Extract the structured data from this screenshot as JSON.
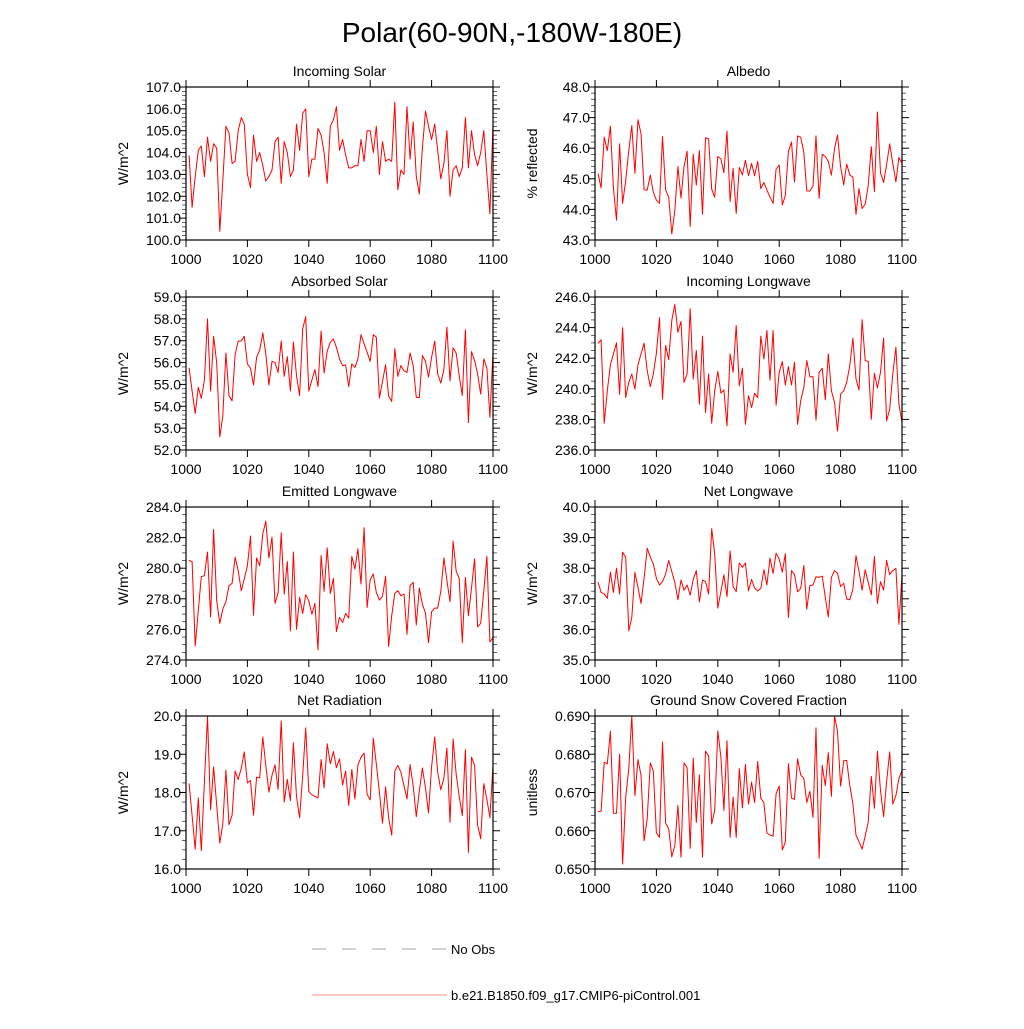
{
  "title": "Polar(60-90N,-180W-180E)",
  "series_color": "#ff0000",
  "obs_color": "#888888",
  "legend": {
    "obs_label": "No Obs",
    "model_label": "b.e21.B1850.f09_g17.CMIP6-piControl.001"
  },
  "chart_data": [
    {
      "type": "line",
      "title": "Incoming Solar",
      "xlabel": "",
      "ylabel": "W/m^2",
      "xlim": [
        1000,
        1100
      ],
      "ylim": [
        100,
        107
      ],
      "grid": false,
      "xticks": [
        "1000",
        "1020",
        "1040",
        "1060",
        "1080",
        "1100"
      ],
      "yticks": [
        "100.0",
        "101.0",
        "102.0",
        "103.0",
        "104.0",
        "105.0",
        "106.0",
        "107.0"
      ],
      "x_start": 1001,
      "values": [
        103.86,
        101.5,
        102.9,
        104.1,
        104.3,
        102.9,
        104.7,
        103.6,
        104.4,
        104.2,
        100.4,
        102.7,
        105.2,
        104.9,
        103.5,
        103.6,
        105.0,
        105.6,
        105.3,
        103.0,
        102.4,
        104.8,
        103.6,
        104.0,
        103.4,
        102.7,
        102.9,
        103.2,
        104.5,
        104.7,
        102.6,
        104.5,
        104.0,
        102.9,
        103.2,
        105.3,
        104.1,
        105.8,
        106.0,
        102.9,
        103.7,
        103.7,
        105.1,
        104.8,
        104.0,
        102.6,
        105.2,
        105.5,
        106.1,
        104.1,
        104.6,
        103.9,
        103.3,
        103.3,
        103.4,
        103.4,
        104.6,
        103.6,
        105.0,
        105.0,
        104.0,
        105.2,
        103.0,
        104.5,
        103.6,
        103.7,
        103.6,
        106.3,
        102.3,
        103.2,
        103.0,
        106.1,
        103.7,
        105.4,
        102.9,
        102.1,
        104.2,
        105.9,
        105.2,
        104.6,
        105.3,
        104.1,
        102.8,
        103.5,
        105.0,
        102.0,
        103.2,
        103.4,
        102.9,
        103.3,
        105.6,
        103.3,
        105.0,
        103.9,
        103.4,
        104.0,
        105.0,
        103.0,
        101.2,
        105.3
      ]
    },
    {
      "type": "line",
      "title": "Albedo",
      "xlabel": "",
      "ylabel": "% reflected",
      "xlim": [
        1000,
        1100
      ],
      "ylim": [
        43,
        48
      ],
      "grid": false,
      "xticks": [
        "1000",
        "1020",
        "1040",
        "1060",
        "1080",
        "1100"
      ],
      "yticks": [
        "43.0",
        "44.0",
        "45.0",
        "46.0",
        "47.0",
        "48.0"
      ],
      "x_start": 1001,
      "values": [
        45.16,
        44.7,
        46.36,
        45.92,
        46.72,
        44.7,
        43.65,
        46.14,
        44.2,
        44.94,
        45.92,
        46.74,
        45.18,
        46.93,
        46.47,
        44.64,
        44.63,
        45.12,
        44.56,
        44.3,
        44.2,
        46.38,
        44.64,
        44.4,
        43.2,
        43.95,
        45.4,
        44.37,
        45.4,
        45.9,
        43.44,
        45.8,
        44.8,
        45.92,
        43.84,
        46.34,
        46.3,
        44.66,
        44.4,
        45.73,
        45.65,
        45.2,
        46.56,
        44.26,
        45.34,
        43.87,
        45.37,
        45.13,
        45.6,
        45.1,
        45.5,
        45.1,
        45.57,
        44.68,
        44.88,
        44.63,
        44.4,
        44.2,
        45.32,
        45.45,
        44.15,
        44.45,
        45.9,
        46.2,
        44.9,
        46.4,
        46.36,
        45.87,
        44.6,
        44.6,
        44.77,
        46.4,
        44.36,
        45.8,
        45.73,
        45.57,
        45.12,
        45.98,
        46.43,
        45.4,
        44.8,
        45.48,
        45.13,
        45.05,
        43.84,
        44.68,
        44.03,
        44.17,
        44.77,
        46.05,
        44.58,
        47.18,
        45.2,
        44.88,
        45.46,
        46.14,
        45.5,
        44.9,
        45.7,
        45.5
      ]
    },
    {
      "type": "line",
      "title": "Absorbed Solar",
      "xlabel": "",
      "ylabel": "W/m^2",
      "xlim": [
        1000,
        1100
      ],
      "ylim": [
        52,
        59
      ],
      "grid": false,
      "xticks": [
        "1000",
        "1020",
        "1040",
        "1060",
        "1080",
        "1100"
      ],
      "yticks": [
        "52.0",
        "53.0",
        "54.0",
        "55.0",
        "56.0",
        "57.0",
        "58.0",
        "59.0"
      ],
      "x_start": 1001,
      "values": [
        55.75,
        54.7,
        53.67,
        54.87,
        54.36,
        55.2,
        58.0,
        54.7,
        57.2,
        56.0,
        52.6,
        53.56,
        56.44,
        54.48,
        54.25,
        56.37,
        56.98,
        57.0,
        57.2,
        55.94,
        55.75,
        54.97,
        56.24,
        56.58,
        57.35,
        56.4,
        54.97,
        56.06,
        56.0,
        55.55,
        56.98,
        55.37,
        56.27,
        54.7,
        56.93,
        55.4,
        54.5,
        57.55,
        58.1,
        54.7,
        55.2,
        55.68,
        54.9,
        57.44,
        55.52,
        56.52,
        56.93,
        57.08,
        56.7,
        56.17,
        55.86,
        55.9,
        54.9,
        55.94,
        55.78,
        56.17,
        57.28,
        56.86,
        56.47,
        56.06,
        57.28,
        57.16,
        54.38,
        55.14,
        55.9,
        54.48,
        54.22,
        56.63,
        55.37,
        55.86,
        55.63,
        55.55,
        56.44,
        55.86,
        54.4,
        54.4,
        56.32,
        56.06,
        55.33,
        56.24,
        56.98,
        55.48,
        55.06,
        55.68,
        57.62,
        55.17,
        56.67,
        56.43,
        55.4,
        54.5,
        57.5,
        53.26,
        56.5,
        56.09,
        55.48,
        54.56,
        56.17,
        55.75,
        53.49,
        56.47
      ]
    },
    {
      "type": "line",
      "title": "Incoming Longwave",
      "xlabel": "",
      "ylabel": "W/m^2",
      "xlim": [
        1000,
        1100
      ],
      "ylim": [
        236,
        246
      ],
      "grid": false,
      "xticks": [
        "1000",
        "1020",
        "1040",
        "1060",
        "1080",
        "1100"
      ],
      "yticks": [
        "236.0",
        "238.0",
        "240.0",
        "242.0",
        "244.0",
        "246.0"
      ],
      "x_start": 1001,
      "values": [
        242.98,
        243.2,
        237.75,
        239.87,
        241.58,
        242.28,
        243.0,
        239.65,
        243.99,
        239.43,
        240.42,
        240.97,
        239.98,
        241.58,
        242.28,
        242.98,
        241.19,
        240.14,
        240.97,
        242.33,
        244.64,
        239.33,
        242.83,
        241.91,
        244.47,
        245.52,
        243.7,
        244.4,
        240.42,
        240.97,
        245.23,
        240.64,
        242.5,
        239.0,
        243.44,
        238.45,
        240.97,
        237.75,
        239.87,
        241.14,
        239.72,
        239.92,
        237.58,
        242.28,
        241.08,
        244.14,
        240.2,
        241.34,
        237.68,
        239.55,
        238.78,
        239.7,
        239.43,
        243.44,
        241.95,
        243.81,
        240.57,
        243.81,
        238.93,
        241.08,
        241.78,
        240.25,
        241.45,
        240.25,
        241.73,
        237.68,
        239.22,
        240.09,
        241.84,
        240.79,
        240.79,
        237.95,
        241.08,
        241.34,
        239.28,
        242.28,
        239.87,
        239.11,
        237.25,
        239.65,
        239.87,
        240.42,
        241.51,
        243.31,
        240.64,
        239.92,
        244.51,
        241.84,
        241.8,
        238.01,
        241.01,
        240.05,
        241.08,
        243.31,
        237.9,
        238.67,
        240.97,
        242.72,
        239.0,
        237.79
      ]
    },
    {
      "type": "line",
      "title": "Emitted Longwave",
      "xlabel": "",
      "ylabel": "W/m^2",
      "xlim": [
        1000,
        1100
      ],
      "ylim": [
        274,
        284
      ],
      "grid": false,
      "xticks": [
        "1000",
        "1020",
        "1040",
        "1060",
        "1080",
        "1100"
      ],
      "yticks": [
        "274.0",
        "276.0",
        "278.0",
        "280.0",
        "282.0",
        "284.0"
      ],
      "x_start": 1001,
      "values": [
        280.5,
        280.43,
        274.92,
        277.22,
        279.45,
        279.51,
        281.05,
        276.82,
        282.53,
        277.87,
        276.39,
        277.33,
        277.81,
        278.86,
        279.01,
        280.72,
        279.84,
        278.53,
        279.3,
        280.17,
        282.1,
        276.93,
        280.67,
        280.17,
        282.25,
        283.08,
        280.67,
        282.03,
        277.7,
        278.38,
        282.31,
        278.31,
        280.43,
        275.9,
        281.05,
        276.01,
        278.09,
        277.04,
        278.27,
        277.87,
        276.99,
        277.7,
        274.66,
        280.83,
        278.49,
        281.33,
        278.35,
        279.34,
        275.86,
        276.78,
        276.45,
        277.04,
        276.74,
        280.77,
        279.95,
        281.27,
        278.97,
        282.64,
        277.44,
        279.25,
        279.62,
        278.42,
        277.92,
        278.16,
        279.47,
        274.88,
        276.89,
        278.35,
        278.53,
        278.2,
        278.31,
        275.68,
        278.86,
        279.08,
        276.3,
        278.7,
        277.65,
        277.06,
        275.14,
        277.15,
        277.39,
        277.39,
        278.49,
        280.67,
        279.19,
        277.81,
        281.77,
        279.8,
        279.34,
        275.14,
        279.4,
        276.89,
        278.7,
        280.61,
        276.17,
        276.39,
        278.53,
        280.77,
        275.18,
        275.47
      ]
    },
    {
      "type": "line",
      "title": "Net Longwave",
      "xlabel": "",
      "ylabel": "W/m^2",
      "xlim": [
        1000,
        1100
      ],
      "ylim": [
        35,
        40
      ],
      "grid": false,
      "xticks": [
        "1000",
        "1020",
        "1040",
        "1060",
        "1080",
        "1100"
      ],
      "yticks": [
        "35.0",
        "36.0",
        "37.0",
        "38.0",
        "39.0",
        "40.0"
      ],
      "x_start": 1001,
      "values": [
        37.54,
        37.21,
        37.16,
        37.02,
        37.87,
        37.21,
        38.0,
        37.16,
        38.52,
        38.36,
        35.95,
        36.39,
        37.87,
        37.37,
        36.85,
        37.68,
        38.65,
        38.36,
        38.14,
        37.67,
        37.45,
        37.56,
        37.81,
        38.25,
        37.89,
        37.54,
        36.97,
        37.61,
        37.28,
        37.45,
        37.12,
        37.63,
        37.92,
        36.9,
        37.61,
        37.57,
        37.16,
        39.29,
        38.47,
        36.7,
        37.24,
        37.78,
        37.07,
        38.56,
        37.4,
        37.24,
        38.17,
        38.03,
        38.17,
        37.26,
        37.63,
        37.35,
        37.26,
        37.34,
        37.95,
        37.45,
        38.33,
        37.83,
        38.49,
        38.3,
        37.87,
        38.47,
        36.39,
        37.92,
        37.79,
        37.23,
        37.34,
        38.09,
        36.66,
        37.43,
        37.45,
        37.72,
        37.7,
        37.74,
        37.05,
        36.41,
        37.7,
        37.92,
        37.84,
        37.4,
        37.51,
        36.99,
        36.97,
        37.32,
        38.41,
        37.9,
        37.28,
        37.95,
        37.54,
        37.13,
        38.38,
        36.85,
        37.56,
        37.28,
        38.25,
        37.79,
        37.92,
        37.99,
        36.17,
        37.76
      ]
    },
    {
      "type": "line",
      "title": "Net Radiation",
      "xlabel": "",
      "ylabel": "W/m^2",
      "xlim": [
        1000,
        1100
      ],
      "ylim": [
        16,
        20
      ],
      "grid": false,
      "xticks": [
        "1000",
        "1020",
        "1040",
        "1060",
        "1080",
        "1100"
      ],
      "yticks": [
        "16.0",
        "17.0",
        "18.0",
        "19.0",
        "20.0"
      ],
      "x_start": 1001,
      "values": [
        18.23,
        17.4,
        16.52,
        17.86,
        16.48,
        18.27,
        20.0,
        17.55,
        18.67,
        17.66,
        16.68,
        17.18,
        18.58,
        17.16,
        17.41,
        18.56,
        18.34,
        18.64,
        19.06,
        18.25,
        18.31,
        17.41,
        18.4,
        18.38,
        19.45,
        18.71,
        18.01,
        18.45,
        18.72,
        18.08,
        19.87,
        17.75,
        18.34,
        17.79,
        19.3,
        17.9,
        17.34,
        18.45,
        19.69,
        18.03,
        17.94,
        17.9,
        17.86,
        18.86,
        18.12,
        19.27,
        18.75,
        19.07,
        18.65,
        18.88,
        18.2,
        18.56,
        17.66,
        18.6,
        17.83,
        18.72,
        18.92,
        19.03,
        17.95,
        17.81,
        19.42,
        18.75,
        18.01,
        17.2,
        18.15,
        17.35,
        16.89,
        18.56,
        18.71,
        18.53,
        18.18,
        17.83,
        18.73,
        18.17,
        17.37,
        18.03,
        18.64,
        18.12,
        17.47,
        18.67,
        19.45,
        18.53,
        18.07,
        18.38,
        19.16,
        17.22,
        19.4,
        18.47,
        17.9,
        17.4,
        19.12,
        16.44,
        18.92,
        18.71,
        17.15,
        16.79,
        18.23,
        17.82,
        17.34,
        18.71
      ]
    },
    {
      "type": "line",
      "title": "Ground Snow Covered Fraction",
      "xlabel": "",
      "ylabel": "unitless",
      "xlim": [
        1000,
        1100
      ],
      "ylim": [
        0.65,
        0.69
      ],
      "grid": false,
      "xticks": [
        "1000",
        "1020",
        "1040",
        "1060",
        "1080",
        "1100"
      ],
      "yticks": [
        "0.650",
        "0.660",
        "0.670",
        "0.680",
        "0.690"
      ],
      "x_start": 1001,
      "values": [
        0.665,
        0.6651,
        0.6779,
        0.6775,
        0.686,
        0.6646,
        0.6646,
        0.68,
        0.6513,
        0.6688,
        0.6762,
        0.69,
        0.6692,
        0.6786,
        0.6745,
        0.6574,
        0.6631,
        0.6777,
        0.6756,
        0.6594,
        0.6583,
        0.6832,
        0.662,
        0.6605,
        0.6532,
        0.6561,
        0.6666,
        0.6531,
        0.6777,
        0.6765,
        0.6554,
        0.679,
        0.6622,
        0.6746,
        0.6531,
        0.6808,
        0.6796,
        0.6618,
        0.6653,
        0.6861,
        0.6793,
        0.6653,
        0.6835,
        0.6583,
        0.6688,
        0.6583,
        0.6762,
        0.666,
        0.6773,
        0.667,
        0.6727,
        0.6674,
        0.6781,
        0.6685,
        0.6673,
        0.6594,
        0.6589,
        0.6586,
        0.6697,
        0.6717,
        0.655,
        0.657,
        0.6775,
        0.6685,
        0.6682,
        0.6788,
        0.6746,
        0.6737,
        0.6674,
        0.6703,
        0.6635,
        0.6869,
        0.6528,
        0.6771,
        0.6718,
        0.6804,
        0.669,
        0.69,
        0.686,
        0.6717,
        0.6783,
        0.6784,
        0.6718,
        0.667,
        0.6589,
        0.6571,
        0.6552,
        0.6586,
        0.6622,
        0.6742,
        0.6659,
        0.6808,
        0.6705,
        0.6637,
        0.6729,
        0.6806,
        0.667,
        0.6692,
        0.6736,
        0.6758
      ]
    }
  ]
}
